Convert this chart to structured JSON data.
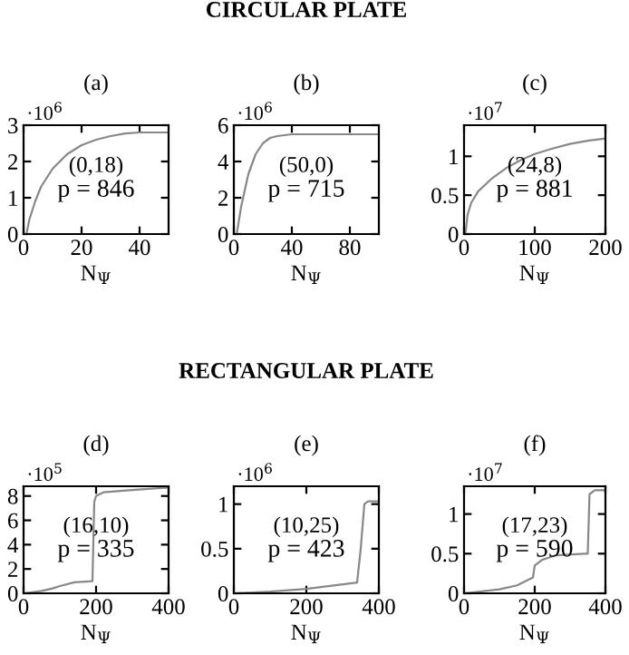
{
  "chart_data": [
    {
      "type": "line",
      "title": "(a)",
      "xlabel": "N$_{Ψ}$",
      "annotations": [
        "·10$^{6}$",
        "(0,18)",
        "p = 846"
      ],
      "xlim": [
        0,
        50
      ],
      "xticks": [
        0,
        20,
        40
      ],
      "ylim": [
        0,
        3
      ],
      "yticks": [
        0,
        1,
        2,
        3
      ],
      "grid": false,
      "legend": false,
      "series": [
        {
          "color": "#888888",
          "x": [
            1,
            2,
            4,
            6,
            10,
            15,
            20,
            25,
            30,
            35,
            40,
            50
          ],
          "values": [
            0,
            0.4,
            0.9,
            1.3,
            1.8,
            2.2,
            2.45,
            2.6,
            2.7,
            2.77,
            2.8,
            2.8
          ]
        }
      ]
    },
    {
      "type": "line",
      "subtitle": "CIRCULAR PLATE",
      "title": "(b)",
      "xlabel": "N$_{Ψ}$",
      "annotations": [
        "·10$^{6}$",
        "(50,0)",
        "p = 715"
      ],
      "xlim": [
        0,
        100
      ],
      "xticks": [
        0,
        40,
        80
      ],
      "ylim": [
        0,
        6
      ],
      "yticks": [
        0,
        2,
        4,
        6
      ],
      "grid": false,
      "legend": false,
      "series": [
        {
          "color": "#888888",
          "x": [
            2,
            5,
            10,
            15,
            20,
            25,
            30,
            40,
            100
          ],
          "values": [
            0,
            1.5,
            3.3,
            4.4,
            5.0,
            5.3,
            5.4,
            5.5,
            5.5
          ]
        }
      ]
    },
    {
      "type": "line",
      "title": "(c)",
      "xlabel": "N$_{Ψ}$",
      "annotations": [
        "·10$^{7}$",
        "(24,8)",
        "p = 881"
      ],
      "xlim": [
        0,
        200
      ],
      "xticks": [
        0,
        100,
        200
      ],
      "ylim": [
        0,
        1.4
      ],
      "yticks": [
        0,
        0.5,
        1
      ],
      "grid": false,
      "legend": false,
      "series": [
        {
          "color": "#888888",
          "x": [
            2,
            5,
            10,
            20,
            40,
            60,
            80,
            100,
            125,
            150,
            175,
            200
          ],
          "values": [
            0,
            0.25,
            0.4,
            0.55,
            0.72,
            0.85,
            0.95,
            1.03,
            1.1,
            1.16,
            1.2,
            1.23
          ]
        }
      ]
    },
    {
      "type": "line",
      "title": "(d)",
      "xlabel": "N$_{Ψ}$",
      "annotations": [
        "·10$^{5}$",
        "(16,10)",
        "p = 335"
      ],
      "xlim": [
        0,
        400
      ],
      "xticks": [
        0,
        200,
        400
      ],
      "ylim": [
        0,
        8.8
      ],
      "yticks": [
        0,
        2,
        4,
        6,
        8
      ],
      "grid": false,
      "legend": false,
      "series": [
        {
          "color": "#888888",
          "x": [
            0,
            50,
            80,
            100,
            140,
            190,
            195,
            200,
            220,
            300,
            400
          ],
          "values": [
            0,
            0.2,
            0.4,
            0.6,
            0.9,
            1.0,
            7.5,
            8.0,
            8.3,
            8.5,
            8.7
          ]
        }
      ]
    },
    {
      "type": "line",
      "subtitle": "RECTANGULAR PLATE",
      "title": "(e)",
      "xlabel": "N$_{Ψ}$",
      "annotations": [
        "·10$^{6}$",
        "(10,25)",
        "p = 423"
      ],
      "xlim": [
        0,
        400
      ],
      "xticks": [
        0,
        200,
        400
      ],
      "ylim": [
        0,
        1.2
      ],
      "yticks": [
        0,
        0.5,
        1
      ],
      "grid": false,
      "legend": false,
      "series": [
        {
          "color": "#888888",
          "x": [
            0,
            100,
            200,
            300,
            340,
            350,
            360,
            370,
            400
          ],
          "values": [
            0,
            0.02,
            0.05,
            0.1,
            0.12,
            0.5,
            1.0,
            1.03,
            1.03
          ]
        }
      ]
    },
    {
      "type": "line",
      "title": "(f)",
      "xlabel": "N$_{Ψ}$",
      "annotations": [
        "·10$^{7}$",
        "(17,23)",
        "p = 590"
      ],
      "xlim": [
        0,
        400
      ],
      "xticks": [
        0,
        200,
        400
      ],
      "ylim": [
        0,
        1.35
      ],
      "yticks": [
        0,
        0.5,
        1
      ],
      "grid": false,
      "legend": false,
      "series": [
        {
          "color": "#888888",
          "x": [
            0,
            100,
            150,
            195,
            200,
            220,
            260,
            340,
            350,
            355,
            370,
            400
          ],
          "values": [
            0,
            0.05,
            0.1,
            0.2,
            0.35,
            0.42,
            0.48,
            0.5,
            0.5,
            1.25,
            1.3,
            1.3
          ]
        }
      ]
    }
  ]
}
